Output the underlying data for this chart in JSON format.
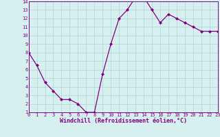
{
  "x": [
    0,
    1,
    2,
    3,
    4,
    5,
    6,
    7,
    8,
    9,
    10,
    11,
    12,
    13,
    14,
    15,
    16,
    17,
    18,
    19,
    20,
    21,
    22,
    23
  ],
  "y": [
    8.0,
    6.5,
    4.5,
    3.5,
    2.5,
    2.5,
    2.0,
    1.0,
    1.0,
    5.5,
    9.0,
    12.0,
    13.0,
    14.5,
    14.5,
    13.0,
    11.5,
    12.5,
    12.0,
    11.5,
    11.0,
    10.5,
    10.5,
    10.5
  ],
  "line_color": "#800080",
  "marker": "D",
  "marker_size": 2.0,
  "xlabel": "Windchill (Refroidissement éolien,°C)",
  "xlim": [
    0,
    23
  ],
  "ylim": [
    1,
    14
  ],
  "xticks": [
    0,
    1,
    2,
    3,
    4,
    5,
    6,
    7,
    8,
    9,
    10,
    11,
    12,
    13,
    14,
    15,
    16,
    17,
    18,
    19,
    20,
    21,
    22,
    23
  ],
  "yticks": [
    1,
    2,
    3,
    4,
    5,
    6,
    7,
    8,
    9,
    10,
    11,
    12,
    13,
    14
  ],
  "bg_color": "#d6f0f0",
  "grid_color": "#b8d8d8",
  "tick_label_fontsize": 5.0,
  "xlabel_fontsize": 6.0,
  "linewidth": 0.9
}
